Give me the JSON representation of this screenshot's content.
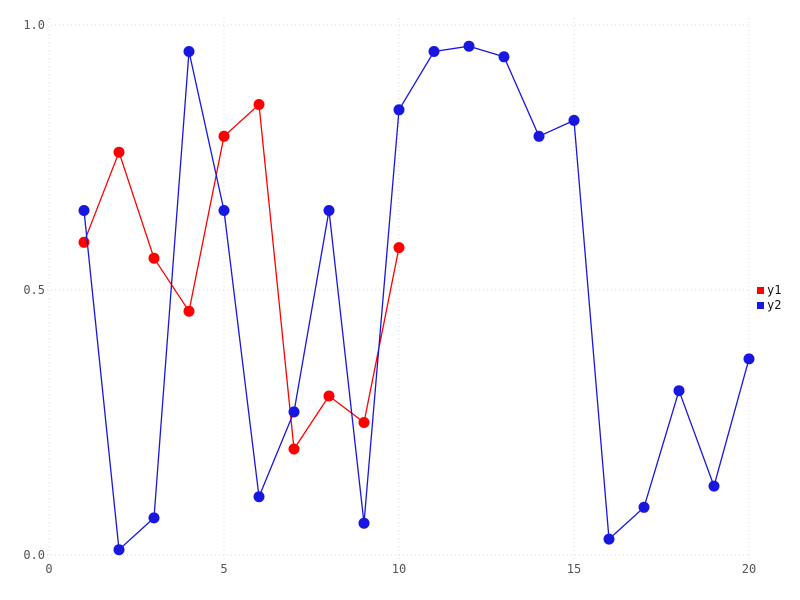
{
  "chart_data": {
    "type": "line",
    "title": "",
    "xlabel": "",
    "ylabel": "",
    "xlim": [
      0,
      20
    ],
    "ylim": [
      0,
      1
    ],
    "grid": true,
    "grid_style": "dotted",
    "legend_position": "right-center",
    "x_ticks": [
      0,
      5,
      10,
      15,
      20
    ],
    "x_tick_labels": [
      "0",
      "5",
      "10",
      "15",
      "20"
    ],
    "y_ticks": [
      0,
      0.5,
      1.0
    ],
    "y_tick_labels": [
      "0.0",
      "0.5",
      "1.0"
    ],
    "series": [
      {
        "name": "y1",
        "color": "#ff0000",
        "x": [
          1,
          2,
          3,
          4,
          5,
          6,
          7,
          8,
          9,
          10
        ],
        "values": [
          0.59,
          0.76,
          0.56,
          0.46,
          0.79,
          0.85,
          0.2,
          0.3,
          0.25,
          0.58
        ]
      },
      {
        "name": "y2",
        "color": "#1717e0",
        "x": [
          1,
          2,
          3,
          4,
          5,
          6,
          7,
          8,
          9,
          10,
          11,
          12,
          13,
          14,
          15,
          16,
          17,
          18,
          19,
          20
        ],
        "values": [
          0.65,
          0.01,
          0.07,
          0.95,
          0.65,
          0.11,
          0.27,
          0.65,
          0.06,
          0.84,
          0.95,
          0.96,
          0.94,
          0.79,
          0.82,
          0.03,
          0.09,
          0.31,
          0.13,
          0.37
        ]
      }
    ]
  },
  "colors": {
    "background": "#ffffff",
    "gridline": "#d8d8e2",
    "tick_label": "#54545c",
    "legend_text": "#111111"
  },
  "legend": {
    "items": [
      {
        "label": "y1",
        "color": "#ff0000"
      },
      {
        "label": "y2",
        "color": "#1717e0"
      }
    ]
  }
}
